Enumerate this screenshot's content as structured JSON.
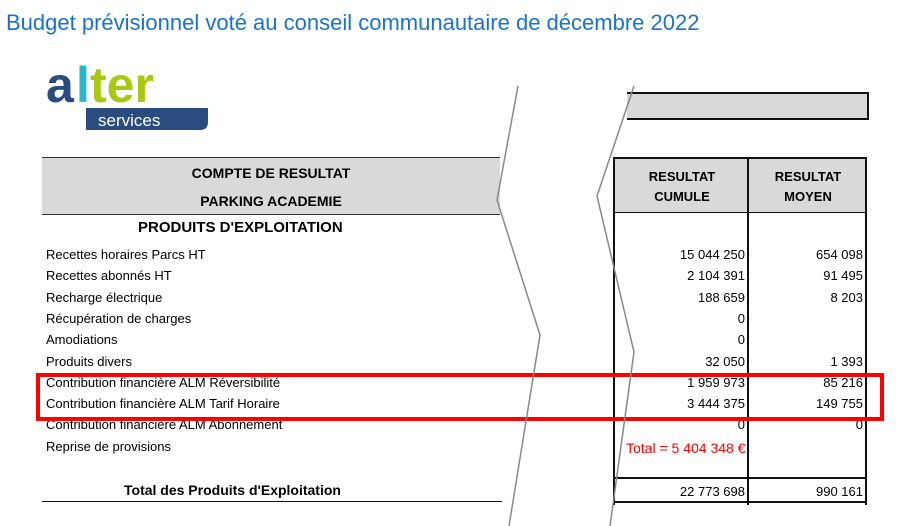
{
  "title": "Budget prévisionnel voté au conseil communautaire de décembre 2022",
  "logo": {
    "word": "alter",
    "sub": "services",
    "colors": {
      "a": "#2b4c7e",
      "l": "#2bb5c8",
      "ter": "#a8c814",
      "band": "#2b4c7e"
    }
  },
  "header": {
    "line1": "COMPTE DE RESULTAT",
    "line2": "PARKING ACADEMIE",
    "col1": [
      "RESULTAT",
      "CUMULE"
    ],
    "col2": [
      "RESULTAT",
      "MOYEN"
    ]
  },
  "section": "PRODUITS D'EXPLOITATION",
  "rows": [
    {
      "label": "Recettes horaires Parcs HT",
      "cumule": "15 044 250",
      "moyen": "654 098"
    },
    {
      "label": "Recettes abonnés HT",
      "cumule": "2 104 391",
      "moyen": "91 495"
    },
    {
      "label": "Recharge  électrique",
      "cumule": "188 659",
      "moyen": "8 203"
    },
    {
      "label": "Récupération de charges",
      "cumule": "0",
      "moyen": ""
    },
    {
      "label": "Amodiations",
      "cumule": "0",
      "moyen": ""
    },
    {
      "label": "Produits divers",
      "cumule": "32 050",
      "moyen": "1 393"
    },
    {
      "label": "Contribution financière ALM Réversibilité",
      "cumule": "1 959 973",
      "moyen": "85 216"
    },
    {
      "label": "Contribution financière ALM Tarif Horaire",
      "cumule": "3 444 375",
      "moyen": "149 755"
    },
    {
      "label": "Contribution financière ALM Abonnement",
      "cumule": "0",
      "moyen": "0"
    },
    {
      "label": "Reprise de provisions",
      "cumule": "",
      "moyen": ""
    }
  ],
  "annotation": "Total  = 5 404 348 €",
  "annotation_color": "#ff0000",
  "total": {
    "label": "Total des Produits d'Exploitation",
    "cumule": "22 773 698",
    "moyen": "990 161"
  }
}
